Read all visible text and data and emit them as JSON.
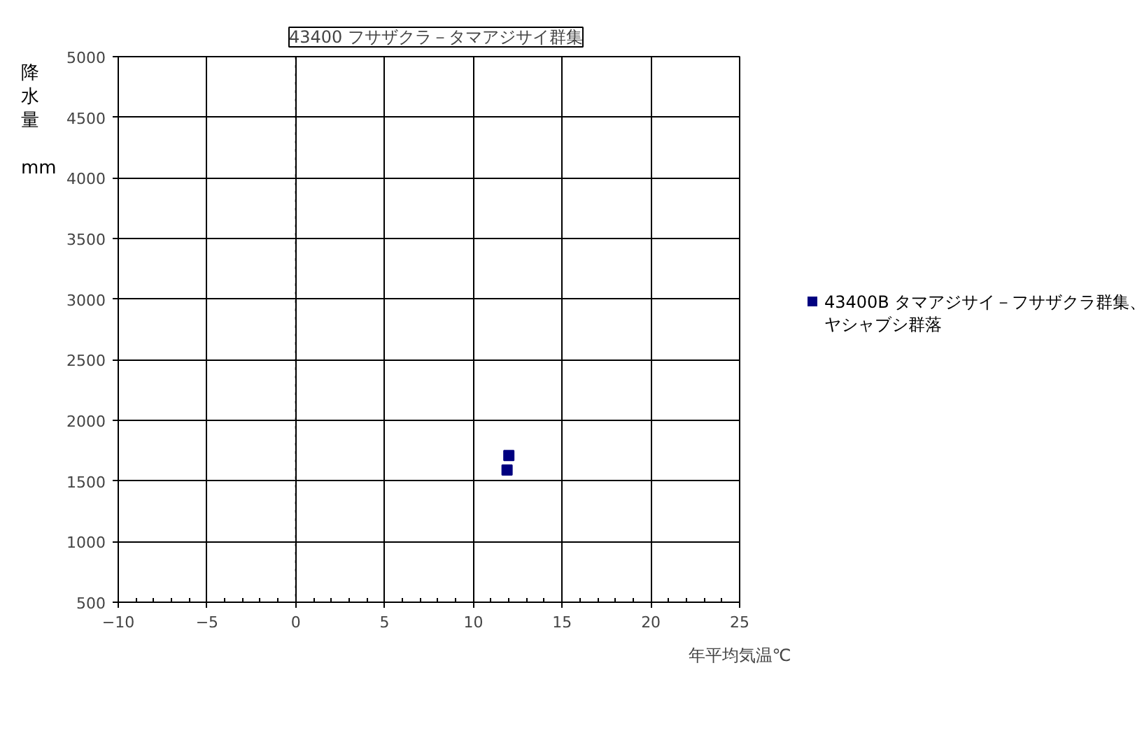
{
  "chart_data": {
    "type": "scatter",
    "title": "43400 フサザクラ－タマアジサイ群集",
    "xlabel": "年平均気温℃",
    "ylabel": "降水量 mm",
    "series": [
      {
        "name": "43400B タマアジサイ－フサザクラ群集、ヤシャブシ群落",
        "color": "#000080",
        "x": [
          12.0,
          11.9
        ],
        "values": [
          1710,
          1590
        ]
      }
    ],
    "xlim": [
      -10,
      25
    ],
    "xticks": [
      -10,
      -5,
      0,
      5,
      10,
      15,
      20,
      25
    ],
    "ylim": [
      500,
      5000
    ],
    "yticks": [
      500,
      1000,
      1500,
      2000,
      2500,
      3000,
      3500,
      4000,
      4500,
      5000
    ],
    "ref_lines": [
      {
        "axis": "x",
        "value": 0,
        "line_style": "dotted",
        "color": "#000000"
      }
    ],
    "grid": true,
    "legend": "right",
    "marker": "square"
  }
}
